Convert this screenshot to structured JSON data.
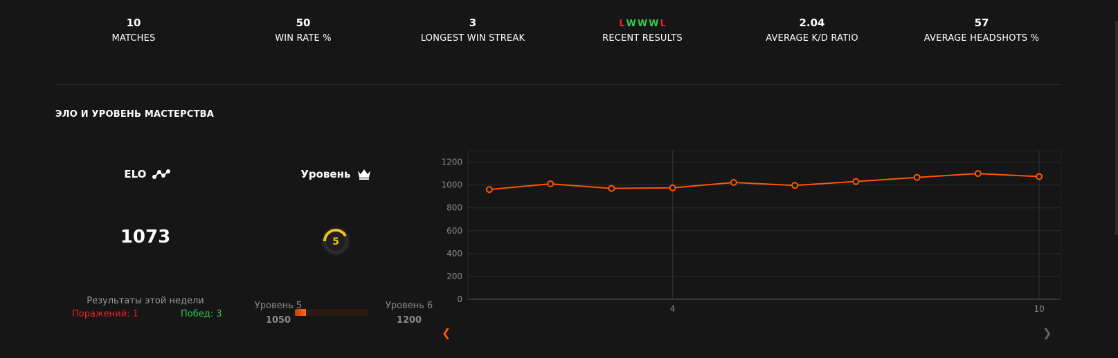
{
  "stats": [
    {
      "value": "10",
      "label": "MATCHES"
    },
    {
      "value": "50",
      "label": "WIN RATE %"
    },
    {
      "value": "3",
      "label": "LONGEST WIN STREAK"
    },
    {
      "value": "",
      "label": "RECENT RESULTS"
    },
    {
      "value": "2.04",
      "label": "AVERAGE K/D RATIO"
    },
    {
      "value": "57",
      "label": "AVERAGE HEADSHOTS %"
    }
  ],
  "recent_results": [
    "L",
    "W",
    "W",
    "W",
    "L"
  ],
  "colors": {
    "win": "#35c84b",
    "loss": "#e8212c",
    "accent": "#ff5500",
    "level": "#f2c21b"
  },
  "section": {
    "title": "ЭЛО И УРОВЕНЬ МАСТЕРСТВА"
  },
  "elo": {
    "label": "ELO",
    "value": "1073"
  },
  "level": {
    "label": "Уровень",
    "value": "5",
    "progress": 0.42
  },
  "week": {
    "title": "Результаты этой недели",
    "losses": "Поражений: 1",
    "wins": "Побед: 3"
  },
  "progress": {
    "from_label": "Уровень 5",
    "from_elo": "1050",
    "to_label": "Уровень 6",
    "to_elo": "1200",
    "fraction": 0.15
  },
  "chart_data": {
    "type": "line",
    "x": [
      1,
      2,
      3,
      4,
      5,
      6,
      7,
      8,
      9,
      10
    ],
    "series": [
      {
        "values": [
          960,
          1010,
          970,
          975,
          1022,
          996,
          1030,
          1066,
          1100,
          1073
        ]
      }
    ],
    "ylim": [
      0,
      1300
    ],
    "yticks": [
      "0",
      "200",
      "400",
      "600",
      "800",
      "1000",
      "1200"
    ],
    "xticks": [
      "4",
      "10"
    ],
    "grid": true
  }
}
